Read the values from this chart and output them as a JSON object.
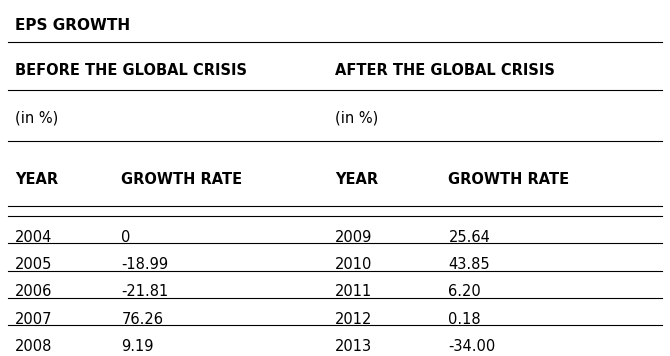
{
  "title": "EPS GROWTH",
  "section1_header": "BEFORE THE GLOBAL CRISIS",
  "section2_header": "AFTER THE GLOBAL CRISIS",
  "unit": "(in %)",
  "col_headers": [
    "YEAR",
    "GROWTH RATE",
    "YEAR",
    "GROWTH RATE"
  ],
  "before_data": [
    [
      "2004",
      "0"
    ],
    [
      "2005",
      "-18.99"
    ],
    [
      "2006",
      "-21.81"
    ],
    [
      "2007",
      "76.26"
    ],
    [
      "2008",
      "9.19"
    ]
  ],
  "after_data": [
    [
      "2009",
      "25.64"
    ],
    [
      "2010",
      "43.85"
    ],
    [
      "2011",
      "6.20"
    ],
    [
      "2012",
      "0.18"
    ],
    [
      "2013",
      "-34.00"
    ]
  ],
  "bg_color": "#ffffff",
  "text_color": "#000000",
  "font_family": "DejaVu Sans",
  "title_fontsize": 11,
  "header_fontsize": 10.5,
  "cell_fontsize": 10.5,
  "fig_width": 6.7,
  "fig_height": 3.56
}
